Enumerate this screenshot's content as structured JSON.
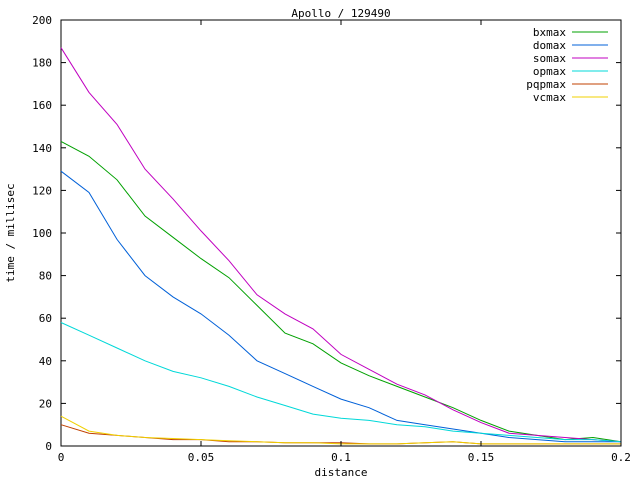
{
  "chart_data": {
    "type": "line",
    "title": "Apollo / 129490",
    "xlabel": "distance",
    "ylabel": "time / millisec",
    "xlim": [
      0,
      0.2
    ],
    "ylim": [
      0,
      200
    ],
    "grid": false,
    "legend_position": "top-right",
    "x_ticks": [
      {
        "value": 0,
        "label": "0"
      },
      {
        "value": 0.05,
        "label": "0.05"
      },
      {
        "value": 0.1,
        "label": "0.1"
      },
      {
        "value": 0.15,
        "label": "0.15"
      },
      {
        "value": 0.2,
        "label": "0.2"
      }
    ],
    "y_ticks": [
      {
        "value": 0,
        "label": "0"
      },
      {
        "value": 20,
        "label": "20"
      },
      {
        "value": 40,
        "label": "40"
      },
      {
        "value": 60,
        "label": "60"
      },
      {
        "value": 80,
        "label": "80"
      },
      {
        "value": 100,
        "label": "100"
      },
      {
        "value": 120,
        "label": "120"
      },
      {
        "value": 140,
        "label": "140"
      },
      {
        "value": 160,
        "label": "160"
      },
      {
        "value": 180,
        "label": "180"
      },
      {
        "value": 200,
        "label": "200"
      }
    ],
    "x": [
      0,
      0.01,
      0.02,
      0.03,
      0.04,
      0.05,
      0.06,
      0.07,
      0.08,
      0.09,
      0.1,
      0.11,
      0.12,
      0.13,
      0.14,
      0.15,
      0.16,
      0.17,
      0.18,
      0.19,
      0.2
    ],
    "series": [
      {
        "name": "bxmax",
        "color": "#00a000",
        "values": [
          143,
          136,
          125,
          108,
          98,
          88,
          79,
          66,
          53,
          48,
          39,
          33,
          28,
          23,
          18,
          12,
          7,
          5,
          3,
          4,
          2
        ]
      },
      {
        "name": "domax",
        "color": "#0060d8",
        "values": [
          129,
          119,
          97,
          80,
          70,
          62,
          52,
          40,
          34,
          28,
          22,
          18,
          12,
          10,
          8,
          6,
          4,
          3,
          2,
          2,
          2
        ]
      },
      {
        "name": "somax",
        "color": "#c000c0",
        "values": [
          187,
          166,
          151,
          130,
          116,
          101,
          87,
          71,
          62,
          55,
          43,
          36,
          29,
          24,
          17,
          11,
          6,
          5,
          4,
          3,
          2
        ]
      },
      {
        "name": "opmax",
        "color": "#00d8d8",
        "values": [
          58,
          52,
          46,
          40,
          35,
          32,
          28,
          23,
          19,
          15,
          13,
          12,
          10,
          9,
          7,
          6,
          5,
          4,
          3,
          3,
          2
        ]
      },
      {
        "name": "pqpmax",
        "color": "#c04000",
        "values": [
          10,
          6,
          5,
          4,
          3,
          3,
          2,
          2,
          1.5,
          1.5,
          1.5,
          1,
          1,
          1.5,
          2,
          1,
          1,
          1,
          1,
          1,
          1
        ]
      },
      {
        "name": "vcmax",
        "color": "#f0d000",
        "values": [
          14,
          7,
          5,
          4,
          3.5,
          3,
          2.5,
          2,
          1.5,
          1.5,
          1,
          1,
          1,
          1.5,
          2,
          1,
          1,
          1,
          1,
          1,
          1
        ]
      }
    ]
  }
}
